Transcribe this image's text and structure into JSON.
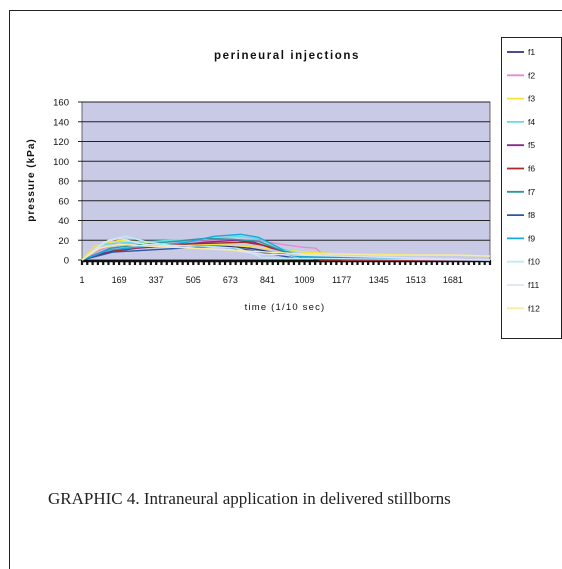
{
  "chart_data": {
    "type": "line",
    "title": "perineural injections",
    "xlabel": "time (1/10 sec)",
    "ylabel": "pressure (kPa)",
    "ylim": [
      0,
      160
    ],
    "yticks": [
      0,
      20,
      40,
      60,
      80,
      100,
      120,
      140,
      160
    ],
    "xlim": [
      1,
      1849
    ],
    "xticks": [
      1,
      169,
      337,
      505,
      673,
      841,
      1009,
      1177,
      1345,
      1513,
      1681
    ],
    "plot_background": "#c9cbe6",
    "grid": true,
    "legend_position": "right",
    "series": [
      {
        "name": "f1",
        "color": "#33337a",
        "x": [
          1,
          80,
          200,
          400,
          600,
          760,
          860,
          1000,
          1100,
          1180,
          1849
        ],
        "y": [
          0,
          6,
          12,
          14,
          15,
          12,
          8,
          3,
          1,
          0,
          0
        ]
      },
      {
        "name": "f2",
        "color": "#e38ad0",
        "x": [
          1,
          80,
          170,
          337,
          505,
          673,
          800,
          900,
          1000,
          1060,
          1100,
          1180,
          1849
        ],
        "y": [
          0,
          10,
          17,
          18,
          19,
          20,
          20,
          16,
          13,
          12,
          4,
          0,
          0
        ]
      },
      {
        "name": "f3",
        "color": "#f2e63a",
        "x": [
          1,
          60,
          169,
          337,
          505,
          673,
          841,
          1009,
          1177,
          1345,
          1513,
          1681,
          1849
        ],
        "y": [
          0,
          14,
          20,
          17,
          16,
          15,
          12,
          8,
          6,
          6,
          5,
          5,
          4
        ]
      },
      {
        "name": "f4",
        "color": "#5ce0e6",
        "x": [
          1,
          100,
          250,
          400,
          560,
          700,
          800,
          900,
          1000,
          1100,
          1849
        ],
        "y": [
          0,
          16,
          18,
          20,
          21,
          24,
          22,
          12,
          5,
          1,
          0
        ]
      },
      {
        "name": "f5",
        "color": "#862a8c",
        "x": [
          1,
          120,
          250,
          420,
          560,
          700,
          780,
          860,
          960,
          1060,
          1849
        ],
        "y": [
          0,
          8,
          12,
          15,
          18,
          20,
          18,
          12,
          6,
          1,
          0
        ]
      },
      {
        "name": "f6",
        "color": "#a82a2a",
        "x": [
          1,
          150,
          300,
          450,
          600,
          740,
          820,
          900,
          1000,
          1080,
          1849
        ],
        "y": [
          0,
          9,
          14,
          16,
          17,
          18,
          15,
          10,
          4,
          0,
          0
        ]
      },
      {
        "name": "f7",
        "color": "#2a9a9a",
        "x": [
          1,
          130,
          280,
          430,
          560,
          680,
          800,
          900,
          1000,
          1849
        ],
        "y": [
          0,
          12,
          16,
          19,
          22,
          21,
          19,
          10,
          3,
          0
        ]
      },
      {
        "name": "f8",
        "color": "#2a55a8",
        "x": [
          1,
          140,
          300,
          450,
          600,
          760,
          860,
          960,
          1849
        ],
        "y": [
          0,
          8,
          10,
          12,
          14,
          10,
          6,
          2,
          0
        ]
      },
      {
        "name": "f9",
        "color": "#1aa8e0",
        "x": [
          1,
          120,
          300,
          480,
          600,
          720,
          800,
          880,
          960,
          1849
        ],
        "y": [
          0,
          10,
          14,
          18,
          24,
          26,
          23,
          14,
          4,
          0
        ]
      },
      {
        "name": "f10",
        "color": "#b8eef5",
        "x": [
          1,
          120,
          200,
          300,
          400,
          560,
          700,
          760,
          820,
          1849
        ],
        "y": [
          0,
          20,
          24,
          18,
          15,
          14,
          12,
          8,
          2,
          0
        ]
      },
      {
        "name": "f11",
        "color": "#dde3f7",
        "x": [
          1,
          100,
          169,
          280,
          400,
          520,
          680,
          800,
          1849
        ],
        "y": [
          0,
          18,
          22,
          16,
          14,
          12,
          10,
          6,
          0
        ]
      },
      {
        "name": "f12",
        "color": "#f7eaa6",
        "x": [
          1,
          80,
          169,
          300,
          505,
          680,
          841,
          1009,
          1177,
          1345,
          1513,
          1681,
          1849
        ],
        "y": [
          0,
          12,
          16,
          14,
          12,
          10,
          8,
          6,
          6,
          5,
          5,
          5,
          4
        ]
      }
    ]
  },
  "caption": "GRAPHIC 4.  Intraneural application in delivered stillborns"
}
